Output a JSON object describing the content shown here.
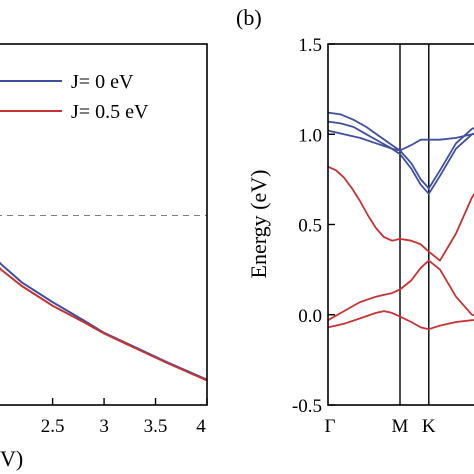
{
  "chart_data": [
    {
      "type": "line",
      "panel_label": "",
      "xlabel": "V)",
      "ylabel": "",
      "xlim": [
        1.95,
        4.0
      ],
      "x_ticks": [
        "2.5",
        "3",
        "3.5",
        "4"
      ],
      "x_tick_values": [
        2.5,
        3.0,
        3.5,
        4.0
      ],
      "ylim": [
        0,
        1
      ],
      "legend_position": "top-right",
      "series": [
        {
          "name": "J= 0 eV",
          "color": "#3f4fa0",
          "x": [
            1.95,
            2.0,
            2.2,
            2.5,
            2.8,
            3.0,
            3.3,
            3.6,
            4.0
          ],
          "y": [
            0.405,
            0.39,
            0.34,
            0.285,
            0.235,
            0.2,
            0.16,
            0.12,
            0.07
          ]
        },
        {
          "name": "J= 0.5 eV",
          "color": "#c83232",
          "x": [
            1.95,
            2.0,
            2.2,
            2.5,
            2.8,
            3.0,
            3.3,
            3.6,
            4.0
          ],
          "y": [
            0.39,
            0.375,
            0.33,
            0.275,
            0.23,
            0.198,
            0.158,
            0.118,
            0.068
          ]
        }
      ],
      "reference_line": {
        "y": 0.525,
        "style": "dashed",
        "color": "#808080"
      }
    },
    {
      "type": "line",
      "panel_label": "(b)",
      "xlabel": "",
      "ylabel": "Energy (eV)",
      "ylim": [
        -0.5,
        1.5
      ],
      "y_ticks": [
        "-0.5",
        "0.0",
        "0.5",
        "1.0",
        "1.5"
      ],
      "y_tick_values": [
        -0.5,
        0.0,
        0.5,
        1.0,
        1.5
      ],
      "xlim": [
        0,
        1.0
      ],
      "x_ticks": [
        "Γ",
        "M",
        "K"
      ],
      "x_tick_values": [
        0.0,
        0.45,
        0.63
      ],
      "vertical_lines": [
        0.45,
        0.63
      ],
      "series": [
        {
          "color": "#3f4fa0",
          "x": [
            0,
            0.08,
            0.16,
            0.24,
            0.32,
            0.4,
            0.45,
            0.52,
            0.58,
            0.63,
            0.7,
            0.8,
            0.9,
            1.0
          ],
          "y": [
            1.12,
            1.11,
            1.08,
            1.04,
            0.99,
            0.94,
            0.91,
            0.84,
            0.75,
            0.7,
            0.8,
            0.95,
            1.03,
            1.06
          ]
        },
        {
          "color": "#3f4fa0",
          "x": [
            0,
            0.08,
            0.16,
            0.24,
            0.32,
            0.4,
            0.45,
            0.52,
            0.58,
            0.63,
            0.7,
            0.8,
            0.9,
            1.0
          ],
          "y": [
            1.07,
            1.06,
            1.04,
            1.0,
            0.96,
            0.92,
            0.89,
            0.81,
            0.72,
            0.67,
            0.77,
            0.92,
            1.0,
            1.03
          ]
        },
        {
          "color": "#3f4fa0",
          "x": [
            0,
            0.1,
            0.2,
            0.3,
            0.4,
            0.45,
            0.52,
            0.58,
            0.63,
            0.7,
            0.8,
            0.9,
            1.0
          ],
          "y": [
            1.02,
            1.0,
            0.98,
            0.95,
            0.92,
            0.91,
            0.94,
            0.97,
            0.97,
            0.97,
            0.98,
            1.0,
            1.02
          ]
        },
        {
          "color": "#c83232",
          "x": [
            0,
            0.05,
            0.1,
            0.15,
            0.2,
            0.25,
            0.3,
            0.35,
            0.4,
            0.45,
            0.52,
            0.58,
            0.63,
            0.7,
            0.8,
            0.9,
            1.0
          ],
          "y": [
            0.82,
            0.8,
            0.76,
            0.7,
            0.63,
            0.55,
            0.48,
            0.43,
            0.41,
            0.42,
            0.41,
            0.39,
            0.35,
            0.3,
            0.45,
            0.65,
            0.78
          ]
        },
        {
          "color": "#c83232",
          "x": [
            0,
            0.1,
            0.2,
            0.3,
            0.35,
            0.4,
            0.45,
            0.52,
            0.58,
            0.63,
            0.7,
            0.8,
            0.9,
            1.0
          ],
          "y": [
            -0.03,
            0.02,
            0.07,
            0.1,
            0.11,
            0.12,
            0.14,
            0.19,
            0.26,
            0.3,
            0.25,
            0.1,
            0.0,
            -0.02
          ]
        },
        {
          "color": "#c83232",
          "x": [
            0,
            0.1,
            0.2,
            0.3,
            0.35,
            0.4,
            0.45,
            0.52,
            0.58,
            0.63,
            0.7,
            0.8,
            0.9,
            1.0
          ],
          "y": [
            -0.07,
            -0.05,
            -0.02,
            0.01,
            0.02,
            0.01,
            -0.01,
            -0.04,
            -0.07,
            -0.08,
            -0.06,
            -0.04,
            -0.03,
            -0.02
          ]
        }
      ]
    }
  ]
}
